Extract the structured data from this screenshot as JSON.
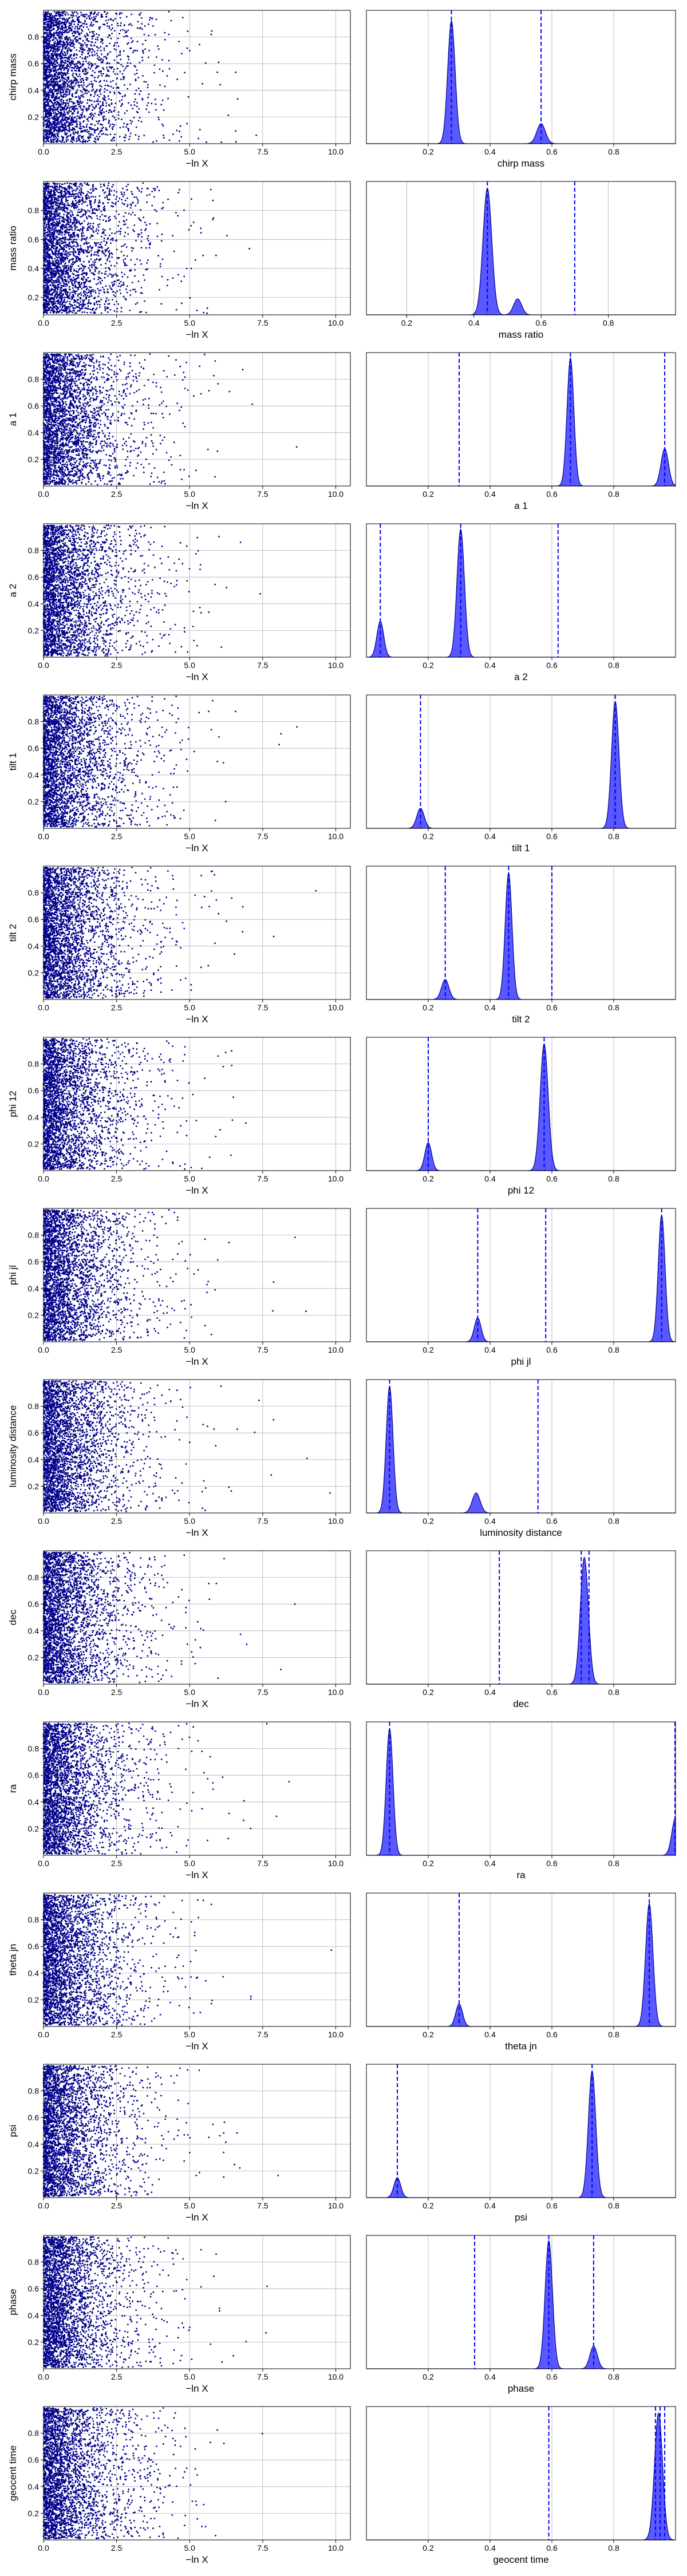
{
  "figure": {
    "x_label_left": "−ln X",
    "axis_line_color": "#000000",
    "grid_color": "#b0b0b0",
    "scatter_color": "#00008b",
    "density_fill_color": "#0000ff",
    "density_edge_color": "#00008b",
    "marker_line_color": "#0000ff"
  },
  "chart_data": [
    {
      "panel": "chirp mass",
      "type": "scatter",
      "x_name": "−ln X",
      "y_name": "chirp mass",
      "xlim": [
        0,
        10.5
      ],
      "ylim": [
        0,
        1
      ],
      "xticks": [
        0,
        2.5,
        5,
        7.5,
        10
      ],
      "xtick_labels": [
        "0.0",
        "2.5",
        "5.0",
        "7.5",
        "10.0"
      ],
      "yticks": [
        0.2,
        0.4,
        0.6,
        0.8
      ],
      "ytick_labels": [
        "0.2",
        "0.4",
        "0.6",
        "0.8"
      ],
      "point_count": 3000,
      "seed": 11
    },
    {
      "panel": "chirp mass",
      "type": "area",
      "x_name": "chirp mass",
      "xlim": [
        0,
        1
      ],
      "ylim": [
        0,
        1
      ],
      "xticks": [
        0.2,
        0.4,
        0.6,
        0.8
      ],
      "xtick_labels": [
        "0.2",
        "0.4",
        "0.6",
        "0.8"
      ],
      "peaks": [
        {
          "center": 0.275,
          "height": 0.92,
          "width": 0.012
        },
        {
          "center": 0.565,
          "height": 0.15,
          "width": 0.014
        }
      ],
      "dashed_lines": [
        0.275,
        0.565
      ]
    },
    {
      "panel": "mass ratio",
      "type": "scatter",
      "x_name": "−ln X",
      "y_name": "mass ratio",
      "xlim": [
        0,
        10.5
      ],
      "ylim": [
        0.08,
        1
      ],
      "xticks": [
        0,
        2.5,
        5,
        7.5,
        10
      ],
      "xtick_labels": [
        "0.0",
        "2.5",
        "5.0",
        "7.5",
        "10.0"
      ],
      "yticks": [
        0.2,
        0.4,
        0.6,
        0.8
      ],
      "ytick_labels": [
        "0.2",
        "0.4",
        "0.6",
        "0.8"
      ],
      "point_count": 3000,
      "seed": 23
    },
    {
      "panel": "mass ratio",
      "type": "area",
      "x_name": "mass ratio",
      "xlim": [
        0.08,
        1
      ],
      "ylim": [
        0,
        1
      ],
      "xticks": [
        0.2,
        0.4,
        0.6,
        0.8
      ],
      "xtick_labels": [
        "0.2",
        "0.4",
        "0.6",
        "0.8"
      ],
      "peaks": [
        {
          "center": 0.44,
          "height": 0.95,
          "width": 0.013
        },
        {
          "center": 0.53,
          "height": 0.12,
          "width": 0.012
        }
      ],
      "dashed_lines": [
        0.44,
        0.7
      ]
    },
    {
      "panel": "a 1",
      "type": "scatter",
      "x_name": "−ln X",
      "y_name": "a 1",
      "xlim": [
        0,
        10.5
      ],
      "ylim": [
        0,
        1
      ],
      "xticks": [
        0,
        2.5,
        5,
        7.5,
        10
      ],
      "xtick_labels": [
        "0.0",
        "2.5",
        "5.0",
        "7.5",
        "10.0"
      ],
      "yticks": [
        0.2,
        0.4,
        0.6,
        0.8
      ],
      "ytick_labels": [
        "0.2",
        "0.4",
        "0.6",
        "0.8"
      ],
      "point_count": 3000,
      "seed": 37
    },
    {
      "panel": "a 1",
      "type": "area",
      "x_name": "a 1",
      "xlim": [
        0,
        1
      ],
      "ylim": [
        0,
        1
      ],
      "xticks": [
        0.2,
        0.4,
        0.6,
        0.8
      ],
      "xtick_labels": [
        "0.2",
        "0.4",
        "0.6",
        "0.8"
      ],
      "peaks": [
        {
          "center": 0.66,
          "height": 0.96,
          "width": 0.011
        },
        {
          "center": 0.965,
          "height": 0.28,
          "width": 0.012
        }
      ],
      "dashed_lines": [
        0.3,
        0.66,
        0.965
      ]
    },
    {
      "panel": "a 2",
      "type": "scatter",
      "x_name": "−ln X",
      "y_name": "a 2",
      "xlim": [
        0,
        10.5
      ],
      "ylim": [
        0,
        1
      ],
      "xticks": [
        0,
        2.5,
        5,
        7.5,
        10
      ],
      "xtick_labels": [
        "0.0",
        "2.5",
        "5.0",
        "7.5",
        "10.0"
      ],
      "yticks": [
        0.2,
        0.4,
        0.6,
        0.8
      ],
      "ytick_labels": [
        "0.2",
        "0.4",
        "0.6",
        "0.8"
      ],
      "point_count": 3000,
      "seed": 41
    },
    {
      "panel": "a 2",
      "type": "area",
      "x_name": "a 2",
      "xlim": [
        0,
        1
      ],
      "ylim": [
        0,
        1
      ],
      "xticks": [
        0.2,
        0.4,
        0.6,
        0.8
      ],
      "xtick_labels": [
        "0.2",
        "0.4",
        "0.6",
        "0.8"
      ],
      "peaks": [
        {
          "center": 0.305,
          "height": 0.96,
          "width": 0.012
        },
        {
          "center": 0.045,
          "height": 0.27,
          "width": 0.011
        }
      ],
      "dashed_lines": [
        0.045,
        0.305,
        0.62
      ]
    },
    {
      "panel": "tilt 1",
      "type": "scatter",
      "x_name": "−ln X",
      "y_name": "tilt 1",
      "xlim": [
        0,
        10.5
      ],
      "ylim": [
        0,
        1
      ],
      "xticks": [
        0,
        2.5,
        5,
        7.5,
        10
      ],
      "xtick_labels": [
        "0.0",
        "2.5",
        "5.0",
        "7.5",
        "10.0"
      ],
      "yticks": [
        0.2,
        0.4,
        0.6,
        0.8
      ],
      "ytick_labels": [
        "0.2",
        "0.4",
        "0.6",
        "0.8"
      ],
      "point_count": 3000,
      "seed": 53
    },
    {
      "panel": "tilt 1",
      "type": "area",
      "x_name": "tilt 1",
      "xlim": [
        0,
        1
      ],
      "ylim": [
        0,
        1
      ],
      "xticks": [
        0.2,
        0.4,
        0.6,
        0.8
      ],
      "xtick_labels": [
        "0.2",
        "0.4",
        "0.6",
        "0.8"
      ],
      "peaks": [
        {
          "center": 0.805,
          "height": 0.95,
          "width": 0.012
        },
        {
          "center": 0.175,
          "height": 0.15,
          "width": 0.012
        }
      ],
      "dashed_lines": [
        0.175,
        0.805
      ]
    },
    {
      "panel": "tilt 2",
      "type": "scatter",
      "x_name": "−ln X",
      "y_name": "tilt 2",
      "xlim": [
        0,
        10.5
      ],
      "ylim": [
        0,
        1
      ],
      "xticks": [
        0,
        2.5,
        5,
        7.5,
        10
      ],
      "xtick_labels": [
        "0.0",
        "2.5",
        "5.0",
        "7.5",
        "10.0"
      ],
      "yticks": [
        0.2,
        0.4,
        0.6,
        0.8
      ],
      "ytick_labels": [
        "0.2",
        "0.4",
        "0.6",
        "0.8"
      ],
      "point_count": 3000,
      "seed": 67
    },
    {
      "panel": "tilt 2",
      "type": "area",
      "x_name": "tilt 2",
      "xlim": [
        0,
        1
      ],
      "ylim": [
        0,
        1
      ],
      "xticks": [
        0.2,
        0.4,
        0.6,
        0.8
      ],
      "xtick_labels": [
        "0.2",
        "0.4",
        "0.6",
        "0.8"
      ],
      "peaks": [
        {
          "center": 0.46,
          "height": 0.95,
          "width": 0.011
        },
        {
          "center": 0.255,
          "height": 0.15,
          "width": 0.012
        }
      ],
      "dashed_lines": [
        0.255,
        0.46,
        0.6
      ]
    },
    {
      "panel": "phi 12",
      "type": "scatter",
      "x_name": "−ln X",
      "y_name": "phi 12",
      "xlim": [
        0,
        10.5
      ],
      "ylim": [
        0,
        1
      ],
      "xticks": [
        0,
        2.5,
        5,
        7.5,
        10
      ],
      "xtick_labels": [
        "0.0",
        "2.5",
        "5.0",
        "7.5",
        "10.0"
      ],
      "yticks": [
        0.2,
        0.4,
        0.6,
        0.8
      ],
      "ytick_labels": [
        "0.2",
        "0.4",
        "0.6",
        "0.8"
      ],
      "point_count": 3000,
      "seed": 71
    },
    {
      "panel": "phi 12",
      "type": "area",
      "x_name": "phi 12",
      "xlim": [
        0,
        1
      ],
      "ylim": [
        0,
        1
      ],
      "xticks": [
        0.2,
        0.4,
        0.6,
        0.8
      ],
      "xtick_labels": [
        "0.2",
        "0.4",
        "0.6",
        "0.8"
      ],
      "peaks": [
        {
          "center": 0.575,
          "height": 0.95,
          "width": 0.013
        },
        {
          "center": 0.2,
          "height": 0.21,
          "width": 0.011
        }
      ],
      "dashed_lines": [
        0.2,
        0.575
      ]
    },
    {
      "panel": "phi jl",
      "type": "scatter",
      "x_name": "−ln X",
      "y_name": "phi jl",
      "xlim": [
        0,
        10.5
      ],
      "ylim": [
        0,
        1
      ],
      "xticks": [
        0,
        2.5,
        5,
        7.5,
        10
      ],
      "xtick_labels": [
        "0.0",
        "2.5",
        "5.0",
        "7.5",
        "10.0"
      ],
      "yticks": [
        0.2,
        0.4,
        0.6,
        0.8
      ],
      "ytick_labels": [
        "0.2",
        "0.4",
        "0.6",
        "0.8"
      ],
      "point_count": 3000,
      "seed": 83
    },
    {
      "panel": "phi jl",
      "type": "area",
      "x_name": "phi jl",
      "xlim": [
        0,
        1
      ],
      "ylim": [
        0,
        1
      ],
      "xticks": [
        0.2,
        0.4,
        0.6,
        0.8
      ],
      "xtick_labels": [
        "0.2",
        "0.4",
        "0.6",
        "0.8"
      ],
      "peaks": [
        {
          "center": 0.955,
          "height": 0.95,
          "width": 0.011
        },
        {
          "center": 0.36,
          "height": 0.18,
          "width": 0.011
        }
      ],
      "dashed_lines": [
        0.36,
        0.58,
        0.955
      ]
    },
    {
      "panel": "luminosity distance",
      "type": "scatter",
      "x_name": "−ln X",
      "y_name": "luminosity distance",
      "xlim": [
        0,
        10.5
      ],
      "ylim": [
        0,
        1
      ],
      "xticks": [
        0,
        2.5,
        5,
        7.5,
        10
      ],
      "xtick_labels": [
        "0.0",
        "2.5",
        "5.0",
        "7.5",
        "10.0"
      ],
      "yticks": [
        0.2,
        0.4,
        0.6,
        0.8
      ],
      "ytick_labels": [
        "0.2",
        "0.4",
        "0.6",
        "0.8"
      ],
      "point_count": 3000,
      "seed": 97
    },
    {
      "panel": "luminosity distance",
      "type": "area",
      "x_name": "luminosity distance",
      "xlim": [
        0,
        1
      ],
      "ylim": [
        0,
        1
      ],
      "xticks": [
        0.2,
        0.4,
        0.6,
        0.8
      ],
      "xtick_labels": [
        "0.2",
        "0.4",
        "0.6",
        "0.8"
      ],
      "peaks": [
        {
          "center": 0.075,
          "height": 0.95,
          "width": 0.011
        },
        {
          "center": 0.355,
          "height": 0.15,
          "width": 0.013
        }
      ],
      "dashed_lines": [
        0.075,
        0.555
      ]
    },
    {
      "panel": "dec",
      "type": "scatter",
      "x_name": "−ln X",
      "y_name": "dec",
      "xlim": [
        0,
        10.5
      ],
      "ylim": [
        0,
        1
      ],
      "xticks": [
        0,
        2.5,
        5,
        7.5,
        10
      ],
      "xtick_labels": [
        "0.0",
        "2.5",
        "5.0",
        "7.5",
        "10.0"
      ],
      "yticks": [
        0.2,
        0.4,
        0.6,
        0.8
      ],
      "ytick_labels": [
        "0.2",
        "0.4",
        "0.6",
        "0.8"
      ],
      "point_count": 3000,
      "seed": 101
    },
    {
      "panel": "dec",
      "type": "area",
      "x_name": "dec",
      "xlim": [
        0,
        1
      ],
      "ylim": [
        0,
        1
      ],
      "xticks": [
        0.2,
        0.4,
        0.6,
        0.8
      ],
      "xtick_labels": [
        "0.2",
        "0.4",
        "0.6",
        "0.8"
      ],
      "peaks": [
        {
          "center": 0.705,
          "height": 0.95,
          "width": 0.013
        }
      ],
      "dashed_lines": [
        0.43,
        0.695,
        0.72
      ]
    },
    {
      "panel": "ra",
      "type": "scatter",
      "x_name": "−ln X",
      "y_name": "ra",
      "xlim": [
        0,
        10.5
      ],
      "ylim": [
        0,
        1
      ],
      "xticks": [
        0,
        2.5,
        5,
        7.5,
        10
      ],
      "xtick_labels": [
        "0.0",
        "2.5",
        "5.0",
        "7.5",
        "10.0"
      ],
      "yticks": [
        0.2,
        0.4,
        0.6,
        0.8
      ],
      "ytick_labels": [
        "0.2",
        "0.4",
        "0.6",
        "0.8"
      ],
      "point_count": 3000,
      "seed": 113
    },
    {
      "panel": "ra",
      "type": "area",
      "x_name": "ra",
      "xlim": [
        0,
        1
      ],
      "ylim": [
        0,
        1
      ],
      "xticks": [
        0.2,
        0.4,
        0.6,
        0.8
      ],
      "xtick_labels": [
        "0.2",
        "0.4",
        "0.6",
        "0.8"
      ],
      "peaks": [
        {
          "center": 0.075,
          "height": 0.95,
          "width": 0.011
        },
        {
          "center": 1.0,
          "height": 0.28,
          "width": 0.012
        }
      ],
      "dashed_lines": [
        0.075,
        1.0
      ]
    },
    {
      "panel": "theta jn",
      "type": "scatter",
      "x_name": "−ln X",
      "y_name": "theta jn",
      "xlim": [
        0,
        10.5
      ],
      "ylim": [
        0,
        1
      ],
      "xticks": [
        0,
        2.5,
        5,
        7.5,
        10
      ],
      "xtick_labels": [
        "0.0",
        "2.5",
        "5.0",
        "7.5",
        "10.0"
      ],
      "yticks": [
        0.2,
        0.4,
        0.6,
        0.8
      ],
      "ytick_labels": [
        "0.2",
        "0.4",
        "0.6",
        "0.8"
      ],
      "point_count": 3000,
      "seed": 127
    },
    {
      "panel": "theta jn",
      "type": "area",
      "x_name": "theta jn",
      "xlim": [
        0,
        1
      ],
      "ylim": [
        0,
        1
      ],
      "xticks": [
        0.2,
        0.4,
        0.6,
        0.8
      ],
      "xtick_labels": [
        "0.2",
        "0.4",
        "0.6",
        "0.8"
      ],
      "peaks": [
        {
          "center": 0.915,
          "height": 0.92,
          "width": 0.012
        },
        {
          "center": 0.3,
          "height": 0.17,
          "width": 0.011
        }
      ],
      "dashed_lines": [
        0.3,
        0.915
      ]
    },
    {
      "panel": "psi",
      "type": "scatter",
      "x_name": "−ln X",
      "y_name": "psi",
      "xlim": [
        0,
        10.5
      ],
      "ylim": [
        0,
        1
      ],
      "xticks": [
        0,
        2.5,
        5,
        7.5,
        10
      ],
      "xtick_labels": [
        "0.0",
        "2.5",
        "5.0",
        "7.5",
        "10.0"
      ],
      "yticks": [
        0.2,
        0.4,
        0.6,
        0.8
      ],
      "ytick_labels": [
        "0.2",
        "0.4",
        "0.6",
        "0.8"
      ],
      "point_count": 3000,
      "seed": 131
    },
    {
      "panel": "psi",
      "type": "area",
      "x_name": "psi",
      "xlim": [
        0,
        1
      ],
      "ylim": [
        0,
        1
      ],
      "xticks": [
        0.2,
        0.4,
        0.6,
        0.8
      ],
      "xtick_labels": [
        "0.2",
        "0.4",
        "0.6",
        "0.8"
      ],
      "peaks": [
        {
          "center": 0.73,
          "height": 0.95,
          "width": 0.012
        },
        {
          "center": 0.1,
          "height": 0.15,
          "width": 0.011
        }
      ],
      "dashed_lines": [
        0.1,
        0.73
      ]
    },
    {
      "panel": "phase",
      "type": "scatter",
      "x_name": "−ln X",
      "y_name": "phase",
      "xlim": [
        0,
        10.5
      ],
      "ylim": [
        0,
        1
      ],
      "xticks": [
        0,
        2.5,
        5,
        7.5,
        10
      ],
      "xtick_labels": [
        "0.0",
        "2.5",
        "5.0",
        "7.5",
        "10.0"
      ],
      "yticks": [
        0.2,
        0.4,
        0.6,
        0.8
      ],
      "ytick_labels": [
        "0.2",
        "0.4",
        "0.6",
        "0.8"
      ],
      "point_count": 3000,
      "seed": 149
    },
    {
      "panel": "phase",
      "type": "area",
      "x_name": "phase",
      "xlim": [
        0,
        1
      ],
      "ylim": [
        0,
        1
      ],
      "xticks": [
        0.2,
        0.4,
        0.6,
        0.8
      ],
      "xtick_labels": [
        "0.2",
        "0.4",
        "0.6",
        "0.8"
      ],
      "peaks": [
        {
          "center": 0.59,
          "height": 0.96,
          "width": 0.012
        },
        {
          "center": 0.735,
          "height": 0.17,
          "width": 0.012
        }
      ],
      "dashed_lines": [
        0.35,
        0.59,
        0.735
      ]
    },
    {
      "panel": "geocent time",
      "type": "scatter",
      "x_name": "−ln X",
      "y_name": "geocent time",
      "xlim": [
        0,
        10.5
      ],
      "ylim": [
        0,
        1
      ],
      "xticks": [
        0,
        2.5,
        5,
        7.5,
        10
      ],
      "xtick_labels": [
        "0.0",
        "2.5",
        "5.0",
        "7.5",
        "10.0"
      ],
      "yticks": [
        0.2,
        0.4,
        0.6,
        0.8
      ],
      "ytick_labels": [
        "0.2",
        "0.4",
        "0.6",
        "0.8"
      ],
      "point_count": 3000,
      "seed": 163
    },
    {
      "panel": "geocent time",
      "type": "area",
      "x_name": "geocent time",
      "xlim": [
        0,
        1
      ],
      "ylim": [
        0,
        1
      ],
      "xticks": [
        0.2,
        0.4,
        0.6,
        0.8
      ],
      "xtick_labels": [
        "0.2",
        "0.4",
        "0.6",
        "0.8"
      ],
      "peaks": [
        {
          "center": 0.945,
          "height": 0.95,
          "width": 0.013
        }
      ],
      "dashed_lines": [
        0.59,
        0.935,
        0.95,
        0.965
      ]
    }
  ]
}
